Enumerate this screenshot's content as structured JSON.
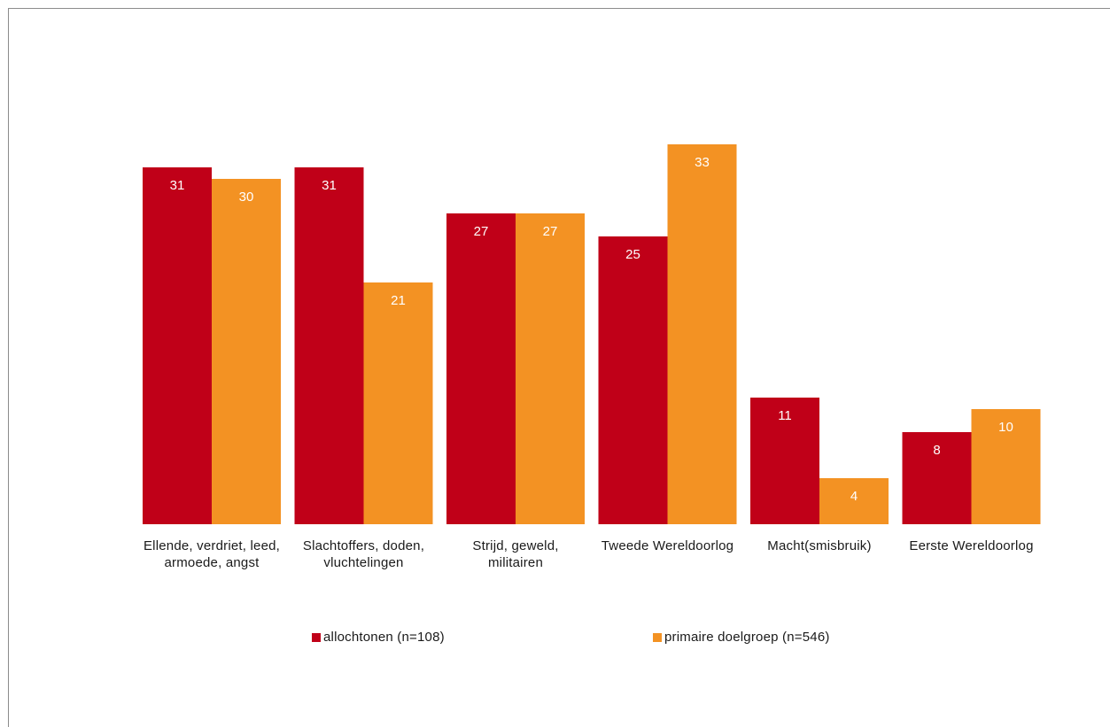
{
  "chart_data": {
    "type": "bar",
    "categories": [
      "Ellende, verdriet, leed, armoede, angst",
      "Slachtoffers, doden, vluchtelingen",
      "Strijd, geweld, militairen",
      "Tweede Wereldoorlog",
      "Macht(smisbruik)",
      "Eerste Wereldoorlog"
    ],
    "series": [
      {
        "name": "allochtonen (n=108)",
        "color": "#c00018",
        "values": [
          31,
          31,
          27,
          25,
          11,
          8
        ]
      },
      {
        "name": "primaire doelgroep (n=546)",
        "color": "#f39223",
        "values": [
          30,
          21,
          27,
          33,
          4,
          10
        ]
      }
    ],
    "ylim": [
      0,
      35
    ],
    "grid": false,
    "legend_position": "bottom",
    "data_labels": true
  }
}
